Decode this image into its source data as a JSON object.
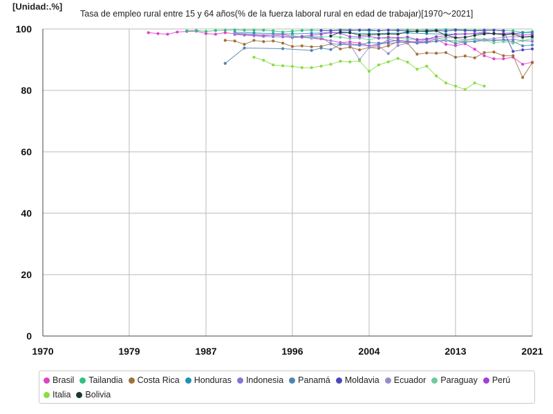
{
  "unit_label": "[Unidad:.%]",
  "chart_data": {
    "type": "line",
    "title": "Tasa de empleo rural entre 15 y 64 años(% de la fuerza laboral rural en edad de trabajar)[1970〜2021]",
    "xlabel": "",
    "ylabel": "",
    "xlim": [
      1970,
      2021
    ],
    "ylim": [
      0,
      100
    ],
    "x_ticks": [
      1970,
      1979,
      1987,
      1996,
      2004,
      2013,
      2021
    ],
    "y_ticks": [
      0,
      20,
      40,
      60,
      80,
      100
    ],
    "grid": true,
    "legend_position": "bottom",
    "series": [
      {
        "name": "Brasil",
        "color": "#e040c8",
        "x": [
          1981,
          1982,
          1983,
          1984,
          1985,
          1986,
          1987,
          1988,
          1989,
          1990,
          1992,
          1993,
          1995,
          1996,
          1997,
          1998,
          1999,
          2001,
          2002,
          2003,
          2004,
          2005,
          2006,
          2007,
          2008,
          2009,
          2010,
          2011,
          2012,
          2013,
          2014,
          2015,
          2016,
          2017,
          2018,
          2019,
          2020,
          2021
        ],
        "values": [
          98.8,
          98.5,
          98.3,
          99.0,
          99.2,
          99.3,
          98.5,
          98.3,
          98.8,
          98.4,
          98.0,
          97.8,
          98.3,
          97.6,
          97.5,
          97.2,
          96.8,
          95.6,
          95.8,
          95.4,
          94.5,
          94.8,
          96.5,
          96.2,
          96.0,
          95.8,
          95.9,
          96.7,
          95.0,
          94.6,
          95.2,
          93.4,
          91.3,
          90.3,
          90.3,
          90.8,
          88.5,
          89.2
        ]
      },
      {
        "name": "Tailandia",
        "color": "#30c080",
        "x": [
          1985,
          1986,
          1987,
          1988,
          1989,
          1990,
          1991,
          1992,
          1993,
          1994,
          1995,
          1996,
          1997,
          1998,
          1999,
          2000,
          2001,
          2002,
          2003,
          2004,
          2005,
          2006,
          2007,
          2008,
          2009,
          2010,
          2011,
          2012,
          2013,
          2014,
          2015,
          2016,
          2017,
          2018,
          2019,
          2020,
          2021
        ],
        "values": [
          99.4,
          99.5,
          99.2,
          99.5,
          99.6,
          99.7,
          99.6,
          99.6,
          99.6,
          99.4,
          99.0,
          99.3,
          99.5,
          99.6,
          99.5,
          99.5,
          99.7,
          99.7,
          99.6,
          99.4,
          99.5,
          99.6,
          99.7,
          99.7,
          99.6,
          99.7,
          99.7,
          99.8,
          99.8,
          99.7,
          99.6,
          99.7,
          99.6,
          99.5,
          99.4,
          98.9,
          99.1
        ]
      },
      {
        "name": "Costa Rica",
        "color": "#a0703a",
        "x": [
          1989,
          1990,
          1991,
          1992,
          1993,
          1994,
          1995,
          1996,
          1997,
          1998,
          1999,
          2000,
          2001,
          2002,
          2003,
          2004,
          2005,
          2006,
          2007,
          2008,
          2009,
          2010,
          2011,
          2012,
          2013,
          2014,
          2015,
          2016,
          2017,
          2018,
          2019,
          2020,
          2021
        ],
        "values": [
          96.3,
          96.1,
          95.0,
          96.3,
          95.9,
          96.1,
          95.4,
          94.3,
          94.5,
          94.2,
          94.3,
          95.2,
          93.5,
          94.1,
          93.2,
          94.0,
          93.7,
          94.5,
          95.9,
          95.4,
          91.8,
          92.2,
          92.1,
          92.3,
          90.8,
          91.2,
          90.6,
          92.3,
          92.5,
          91.3,
          91.3,
          84.2,
          89.0
        ]
      },
      {
        "name": "Honduras",
        "color": "#2090b8",
        "x": [
          1990,
          1992,
          1994,
          1996,
          1998,
          2000,
          2002,
          2004,
          2006,
          2008,
          2010,
          2012,
          2014,
          2016,
          2018,
          2020,
          2021
        ],
        "values": [
          98.9,
          98.7,
          98.5,
          98.4,
          98.6,
          98.8,
          98.7,
          98.5,
          98.6,
          98.7,
          98.5,
          98.3,
          98.4,
          98.6,
          98.2,
          98.8,
          98.9
        ]
      },
      {
        "name": "Indonesia",
        "color": "#8a72d8",
        "x": [
          1990,
          1991,
          1992,
          1993,
          1994,
          1995,
          1996,
          1997,
          1998,
          1999,
          2000,
          2001,
          2002,
          2003,
          2004,
          2005,
          2006,
          2007,
          2008,
          2009,
          2010,
          2011,
          2012,
          2013,
          2014,
          2015,
          2016,
          2017,
          2018,
          2019,
          2020,
          2021
        ],
        "values": [
          98.2,
          98.0,
          97.8,
          97.6,
          97.5,
          97.4,
          97.2,
          97.3,
          97.5,
          97.4,
          95.2,
          95.0,
          94.8,
          94.7,
          94.5,
          95.1,
          95.3,
          95.6,
          95.8,
          95.4,
          95.6,
          96.0,
          96.2,
          96.1,
          95.8,
          95.9,
          96.3,
          96.4,
          96.5,
          96.6,
          96.2,
          96.0
        ]
      },
      {
        "name": "Panamá",
        "color": "#4f84b0",
        "x": [
          1989,
          1991,
          1995,
          1998,
          1999,
          2000,
          2001,
          2002,
          2003,
          2004,
          2005,
          2006,
          2007,
          2008,
          2009,
          2010,
          2011,
          2012,
          2013,
          2014,
          2015,
          2016,
          2017,
          2018,
          2019,
          2020,
          2021
        ],
        "values": [
          88.8,
          93.8,
          93.6,
          93.0,
          93.8,
          93.3,
          95.0,
          95.2,
          94.8,
          95.6,
          95.4,
          95.7,
          96.4,
          95.9,
          95.5,
          95.8,
          96.0,
          96.4,
          95.3,
          95.7,
          96.0,
          96.5,
          96.2,
          96.4,
          95.9,
          94.5,
          94.8
        ]
      },
      {
        "name": "Moldavia",
        "color": "#4a48b8",
        "x": [
          1999,
          2000,
          2001,
          2002,
          2003,
          2004,
          2005,
          2006,
          2007,
          2008,
          2009,
          2010,
          2011,
          2012,
          2013,
          2014,
          2015,
          2016,
          2017,
          2018,
          2019,
          2020,
          2021
        ],
        "values": [
          99.5,
          99.4,
          99.6,
          99.5,
          99.6,
          99.7,
          99.4,
          99.6,
          99.5,
          99.3,
          99.2,
          99.4,
          99.5,
          99.3,
          99.6,
          99.5,
          99.4,
          99.5,
          99.6,
          99.4,
          92.7,
          93.2,
          93.5
        ]
      },
      {
        "name": "Ecuador",
        "color": "#9a8ac8",
        "x": [
          1990,
          1994,
          1998,
          2000,
          2002,
          2003,
          2004,
          2005,
          2006,
          2007,
          2008,
          2009,
          2010,
          2011,
          2012,
          2013,
          2014,
          2015,
          2016,
          2017,
          2018,
          2019,
          2020,
          2021
        ],
        "values": [
          98.6,
          98.0,
          97.0,
          96.2,
          95.0,
          90.0,
          94.0,
          94.4,
          92.0,
          94.6,
          95.4,
          96.0,
          96.5,
          97.0,
          97.2,
          97.1,
          96.4,
          96.8,
          96.6,
          96.9,
          97.3,
          97.5,
          97.4,
          97.8
        ]
      },
      {
        "name": "Paraguay",
        "color": "#6ecc9a",
        "x": [
          1996,
          1997,
          1998,
          1999,
          2000,
          2001,
          2002,
          2003,
          2004,
          2005,
          2006,
          2007,
          2008,
          2009,
          2010,
          2011,
          2012,
          2013,
          2014,
          2015,
          2016,
          2017,
          2018,
          2019,
          2020,
          2021
        ],
        "values": [
          97.8,
          97.5,
          97.2,
          97.4,
          97.6,
          97.3,
          96.9,
          97.0,
          96.5,
          97.2,
          96.8,
          97.1,
          96.7,
          96.6,
          96.8,
          97.0,
          96.4,
          96.1,
          96.2,
          96.6,
          96.3,
          95.5,
          95.9,
          95.4,
          96.2,
          96.8
        ]
      },
      {
        "name": "Perú",
        "color": "#a040d8",
        "x": [
          1997,
          1998,
          1999,
          2000,
          2001,
          2002,
          2003,
          2004,
          2005,
          2006,
          2007,
          2008,
          2009,
          2010,
          2011,
          2012,
          2013,
          2014,
          2015,
          2016,
          2017,
          2018,
          2019,
          2020,
          2021
        ],
        "values": [
          97.6,
          98.0,
          98.3,
          98.8,
          98.6,
          97.5,
          97.4,
          97.6,
          97.0,
          97.3,
          97.1,
          97.4,
          96.5,
          96.7,
          97.5,
          97.8,
          98.3,
          98.4,
          98.5,
          99.0,
          98.4,
          98.6,
          98.7,
          98.0,
          98.3
        ]
      },
      {
        "name": "Italia",
        "color": "#88dd44",
        "x": [
          1992,
          1993,
          1994,
          1995,
          1996,
          1997,
          1998,
          1999,
          2000,
          2001,
          2002,
          2003,
          2004,
          2005,
          2006,
          2007,
          2008,
          2009,
          2010,
          2011,
          2012,
          2013,
          2014,
          2015,
          2016
        ],
        "values": [
          90.8,
          89.8,
          88.3,
          88.0,
          87.8,
          87.4,
          87.4,
          87.9,
          88.5,
          89.5,
          89.3,
          89.6,
          86.2,
          88.3,
          89.3,
          90.4,
          89.2,
          86.9,
          87.9,
          84.7,
          82.4,
          81.4,
          80.3,
          82.4,
          81.4
        ]
      },
      {
        "name": "Bolivia",
        "color": "#1a3a2a",
        "x": [
          2000,
          2001,
          2002,
          2003,
          2004,
          2005,
          2006,
          2007,
          2008,
          2009,
          2010,
          2011,
          2012,
          2013,
          2014,
          2015,
          2016,
          2017,
          2018,
          2019,
          2020,
          2021
        ],
        "values": [
          97.7,
          99.0,
          98.8,
          98.0,
          98.1,
          98.2,
          98.4,
          98.3,
          99.1,
          99.3,
          99.2,
          99.4,
          98.0,
          97.2,
          97.3,
          97.9,
          98.4,
          98.6,
          98.1,
          98.4,
          97.3,
          97.5
        ]
      }
    ]
  }
}
